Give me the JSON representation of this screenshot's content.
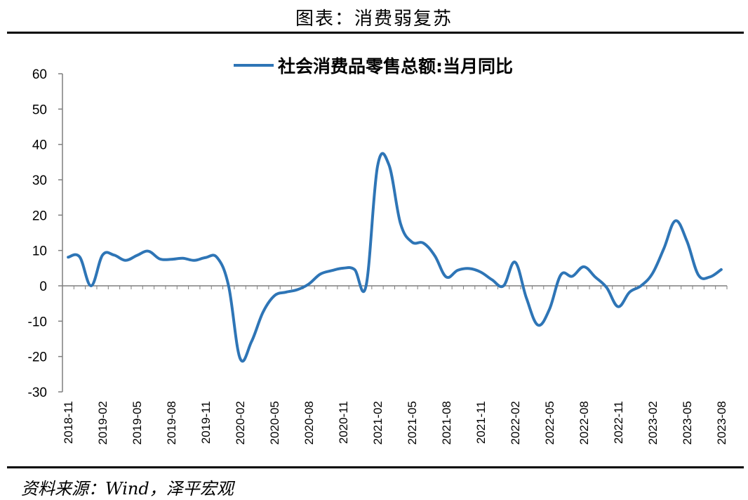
{
  "figure_title": "图表：消费弱复苏",
  "source_text": "资料来源：Wind，泽平宏观",
  "colors": {
    "line": "#2E75B6",
    "axis": "#7f7f7f",
    "text": "#000000"
  },
  "chart_data": {
    "type": "line",
    "title": "",
    "xlabel": "",
    "ylabel": "",
    "ylim": [
      -30,
      60
    ],
    "yticks": [
      60,
      50,
      40,
      30,
      20,
      10,
      0,
      -10,
      -20,
      -30
    ],
    "xtick_labels": [
      "2018-11",
      "2019-02",
      "2019-05",
      "2019-08",
      "2019-11",
      "2020-02",
      "2020-05",
      "2020-08",
      "2020-11",
      "2021-02",
      "2021-05",
      "2021-08",
      "2021-11",
      "2022-02",
      "2022-05",
      "2022-08",
      "2022-11",
      "2023-02",
      "2023-05",
      "2023-08"
    ],
    "legend_position": "top-center",
    "series": [
      {
        "name": "社会消费品零售总额:当月同比",
        "x": [
          "2018-11",
          "2018-12",
          "2019-01",
          "2019-02",
          "2019-03",
          "2019-04",
          "2019-05",
          "2019-06",
          "2019-07",
          "2019-08",
          "2019-09",
          "2019-10",
          "2019-11",
          "2019-12",
          "2020-01",
          "2020-02",
          "2020-03",
          "2020-04",
          "2020-05",
          "2020-06",
          "2020-07",
          "2020-08",
          "2020-09",
          "2020-10",
          "2020-11",
          "2020-12",
          "2021-01",
          "2021-02",
          "2021-03",
          "2021-04",
          "2021-05",
          "2021-06",
          "2021-07",
          "2021-08",
          "2021-09",
          "2021-10",
          "2021-11",
          "2021-12",
          "2022-01",
          "2022-02",
          "2022-03",
          "2022-04",
          "2022-05",
          "2022-06",
          "2022-07",
          "2022-08",
          "2022-09",
          "2022-10",
          "2022-11",
          "2022-12",
          "2023-01",
          "2023-02",
          "2023-03",
          "2023-04",
          "2023-05",
          "2023-06",
          "2023-07",
          "2023-08"
        ],
        "values": [
          8.1,
          8.2,
          0.0,
          8.7,
          8.7,
          7.2,
          8.6,
          9.8,
          7.6,
          7.5,
          7.8,
          7.2,
          8.0,
          8.0,
          0.0,
          -20.5,
          -15.8,
          -7.5,
          -2.8,
          -1.8,
          -1.1,
          0.5,
          3.3,
          4.3,
          5.0,
          4.6,
          0.0,
          33.8,
          34.2,
          17.7,
          12.4,
          12.1,
          8.5,
          2.5,
          4.4,
          4.9,
          3.9,
          1.7,
          0.0,
          6.7,
          -3.5,
          -11.1,
          -6.7,
          3.1,
          2.7,
          5.4,
          2.5,
          -0.5,
          -5.9,
          -1.8,
          0.0,
          3.5,
          10.6,
          18.4,
          12.7,
          3.1,
          2.5,
          4.6
        ]
      }
    ]
  }
}
